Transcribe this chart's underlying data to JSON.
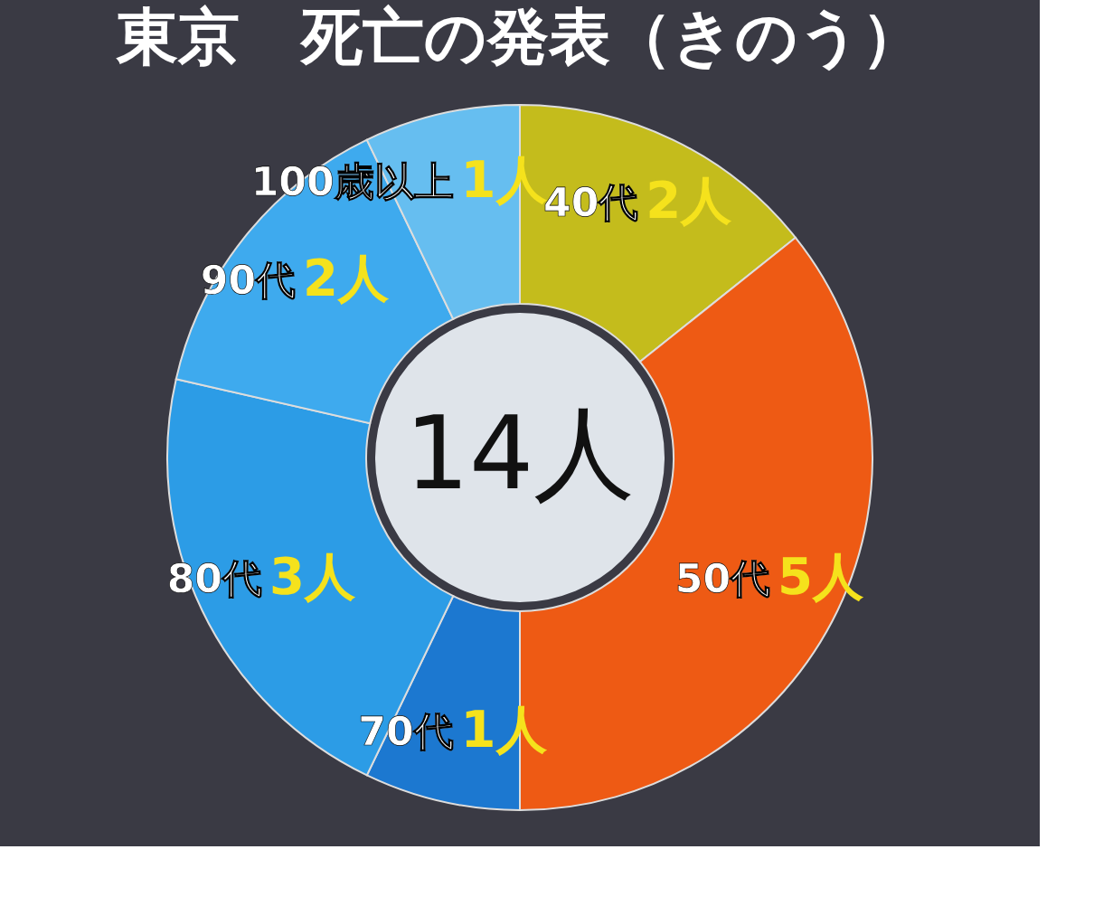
{
  "chart_data": {
    "type": "donut",
    "title": "東京　死亡の発表（きのう）",
    "categories": [
      "40代",
      "50代",
      "70代",
      "80代",
      "90代",
      "100歳以上"
    ],
    "values": [
      2,
      5,
      1,
      3,
      2,
      1
    ],
    "colors": [
      "#c4bc1c",
      "#ee5a14",
      "#1c78d0",
      "#2c9ce6",
      "#3eaaee",
      "#66bef0"
    ],
    "value_labels": [
      "2人",
      "5人",
      "1人",
      "3人",
      "2人",
      "1人"
    ],
    "annotations": [
      "14人"
    ],
    "legend": false
  }
}
